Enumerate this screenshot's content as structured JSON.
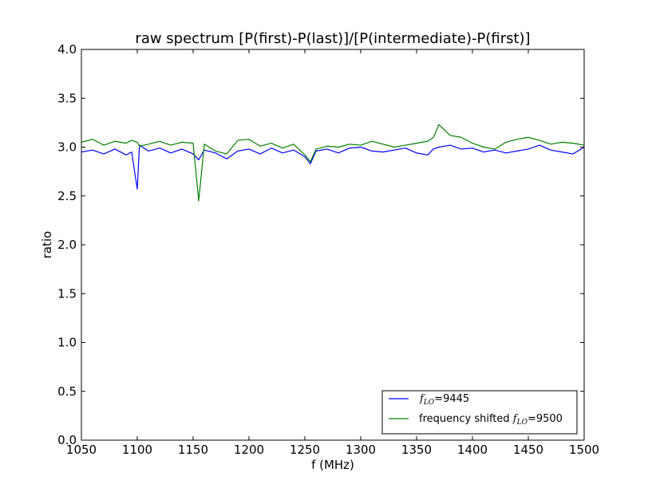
{
  "chart_data": {
    "type": "line",
    "title": "raw spectrum [P(first)-P(last)]/[P(intermediate)-P(first)]",
    "xlabel": "f (MHz)",
    "ylabel": "ratio",
    "xlim": [
      1050,
      1500
    ],
    "ylim": [
      0.0,
      4.0
    ],
    "xticks": [
      "1050",
      "1100",
      "1150",
      "1200",
      "1250",
      "1300",
      "1350",
      "1400",
      "1450",
      "1500"
    ],
    "yticks": [
      "0.0",
      "0.5",
      "1.0",
      "1.5",
      "2.0",
      "2.5",
      "3.0",
      "3.5",
      "4.0"
    ],
    "grid": false,
    "legend_position": "lower-right",
    "x": [
      1050,
      1060,
      1070,
      1080,
      1090,
      1095,
      1100,
      1102,
      1110,
      1120,
      1130,
      1140,
      1150,
      1155,
      1160,
      1170,
      1180,
      1190,
      1200,
      1210,
      1220,
      1230,
      1240,
      1250,
      1255,
      1260,
      1270,
      1280,
      1290,
      1300,
      1310,
      1320,
      1330,
      1340,
      1350,
      1360,
      1365,
      1370,
      1380,
      1390,
      1400,
      1410,
      1420,
      1430,
      1440,
      1450,
      1460,
      1470,
      1480,
      1490,
      1500
    ],
    "series": [
      {
        "name_prefix": "f",
        "name_sub": "LO",
        "name_suffix": "=9445",
        "color": "#0000ff",
        "values": [
          2.95,
          2.97,
          2.93,
          2.98,
          2.92,
          2.95,
          2.57,
          3.02,
          2.96,
          2.99,
          2.94,
          2.98,
          2.93,
          2.87,
          2.97,
          2.94,
          2.88,
          2.96,
          2.98,
          2.93,
          2.99,
          2.94,
          2.97,
          2.9,
          2.83,
          2.96,
          2.98,
          2.94,
          2.99,
          3.0,
          2.96,
          2.95,
          2.97,
          2.99,
          2.94,
          2.92,
          2.98,
          3.0,
          3.02,
          2.98,
          2.99,
          2.95,
          2.97,
          2.94,
          2.96,
          2.98,
          3.02,
          2.97,
          2.95,
          2.93,
          3.0
        ]
      },
      {
        "name_prefix": "frequency shifted f",
        "name_sub": "LO",
        "name_suffix": "=9500",
        "color": "#008000",
        "values": [
          3.05,
          3.08,
          3.02,
          3.06,
          3.04,
          3.07,
          3.05,
          3.01,
          3.03,
          3.06,
          3.02,
          3.05,
          3.04,
          2.45,
          3.03,
          2.96,
          2.93,
          3.07,
          3.08,
          3.01,
          3.04,
          2.99,
          3.03,
          2.92,
          2.85,
          2.98,
          3.01,
          3.0,
          3.03,
          3.02,
          3.06,
          3.03,
          3.0,
          3.02,
          3.04,
          3.06,
          3.1,
          3.23,
          3.12,
          3.1,
          3.04,
          3.0,
          2.98,
          3.05,
          3.08,
          3.1,
          3.07,
          3.03,
          3.05,
          3.04,
          3.02
        ]
      }
    ]
  }
}
